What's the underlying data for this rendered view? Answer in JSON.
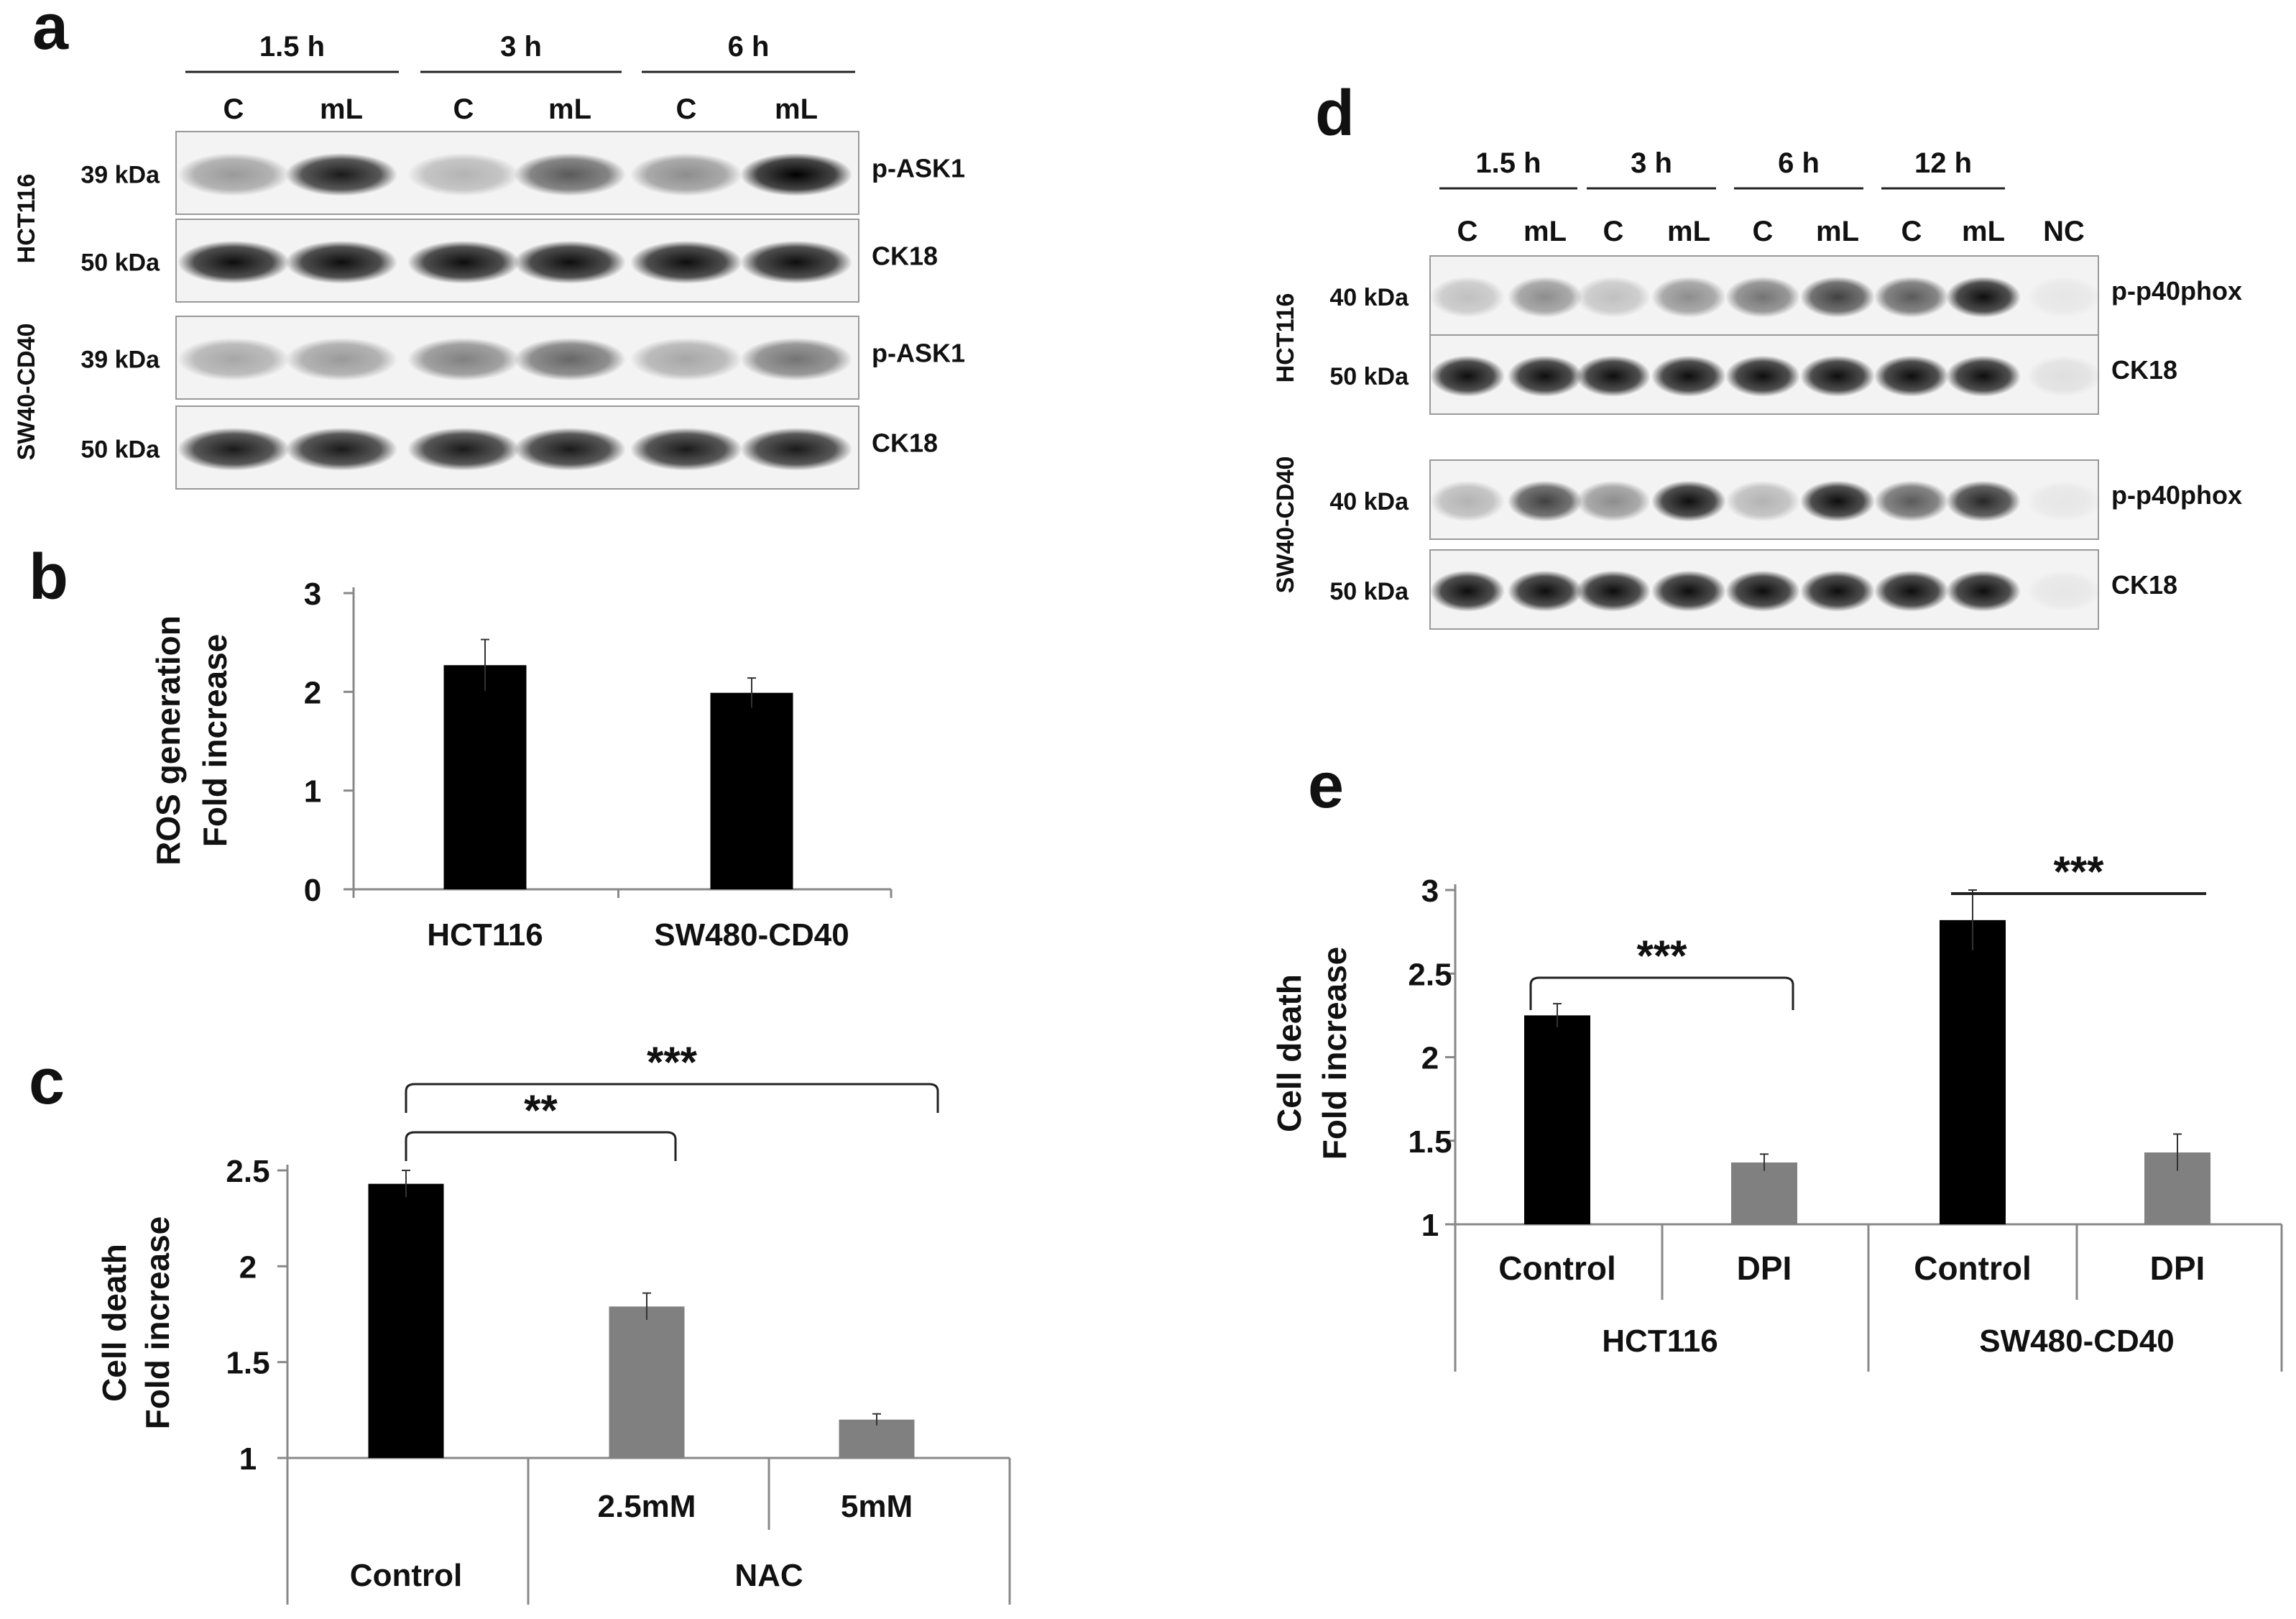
{
  "panels": {
    "a": {
      "letter": "a",
      "time_points": [
        "1.5 h",
        "3 h",
        "6 h"
      ],
      "lane_labels": [
        "C",
        "mL",
        "C",
        "mL",
        "C",
        "mL"
      ],
      "cell_lines": [
        "HCT116",
        "SW40-CD40"
      ],
      "blots": [
        {
          "kda": "39 kDa",
          "protein": "p-ASK1",
          "intensity": [
            0.35,
            0.85,
            0.25,
            0.6,
            0.4,
            0.95
          ]
        },
        {
          "kda": "50 kDa",
          "protein": "CK18",
          "intensity": [
            0.9,
            0.9,
            0.9,
            0.9,
            0.9,
            0.9
          ]
        },
        {
          "kda": "39 kDa",
          "protein": "p-ASK1",
          "intensity": [
            0.3,
            0.35,
            0.45,
            0.55,
            0.3,
            0.5
          ]
        },
        {
          "kda": "50 kDa",
          "protein": "CK18",
          "intensity": [
            0.85,
            0.85,
            0.85,
            0.85,
            0.85,
            0.85
          ]
        }
      ]
    },
    "d": {
      "letter": "d",
      "time_points": [
        "1.5 h",
        "3 h",
        "6 h",
        "12 h"
      ],
      "lane_labels": [
        "C",
        "mL",
        "C",
        "mL",
        "C",
        "mL",
        "C",
        "mL",
        "NC"
      ],
      "cell_lines": [
        "HCT116",
        "SW40-CD40"
      ],
      "blots": [
        {
          "kda": "40 kDa",
          "protein": "p-p40phox",
          "intensity": [
            0.2,
            0.4,
            0.2,
            0.4,
            0.5,
            0.7,
            0.6,
            0.9,
            0.05
          ]
        },
        {
          "kda": "50 kDa",
          "protein": "CK18",
          "intensity": [
            0.9,
            0.9,
            0.9,
            0.9,
            0.9,
            0.9,
            0.9,
            0.9,
            0.08
          ]
        },
        {
          "kda": "40 kDa",
          "protein": "p-p40phox",
          "intensity": [
            0.25,
            0.7,
            0.4,
            0.9,
            0.25,
            0.9,
            0.6,
            0.8,
            0.05
          ]
        },
        {
          "kda": "50 kDa",
          "protein": "CK18",
          "intensity": [
            0.9,
            0.9,
            0.9,
            0.9,
            0.9,
            0.9,
            0.9,
            0.9,
            0.05
          ]
        }
      ]
    }
  },
  "chart_data": [
    {
      "panel": "b",
      "type": "bar",
      "title": "",
      "xlabel": "",
      "ylabel": [
        "ROS generation",
        "Fold increase"
      ],
      "categories": [
        "HCT116",
        "SW480-CD40"
      ],
      "values": [
        2.27,
        1.99
      ],
      "errors": [
        0.26,
        0.15
      ],
      "bar_colors": [
        "#000000",
        "#000000"
      ],
      "ylim": [
        0,
        3
      ],
      "yticks": [
        "0",
        "1",
        "2",
        "3"
      ],
      "grid": false
    },
    {
      "panel": "c",
      "type": "bar",
      "title": "",
      "xlabel": "",
      "ylabel": [
        "Cell death",
        "Fold increase"
      ],
      "categories": [
        "Control",
        "2.5mM",
        "5mM"
      ],
      "group_labels": [
        "Control",
        "NAC"
      ],
      "values": [
        2.43,
        1.79,
        1.2
      ],
      "errors": [
        0.07,
        0.07,
        0.03
      ],
      "bar_colors": [
        "#000000",
        "#808080",
        "#808080"
      ],
      "ylim": [
        1,
        2.5
      ],
      "yticks": [
        "1",
        "1.5",
        "2",
        "2.5"
      ],
      "significance": [
        {
          "from": "Control",
          "to": "2.5mM",
          "label": "**"
        },
        {
          "from": "Control",
          "to": "5mM",
          "label": "***"
        }
      ],
      "grid": false
    },
    {
      "panel": "e",
      "type": "bar",
      "title": "",
      "xlabel": "",
      "ylabel": [
        "Cell death",
        "Fold increase"
      ],
      "categories": [
        "Control",
        "DPI",
        "Control",
        "DPI"
      ],
      "group_labels": [
        "HCT116",
        "SW480-CD40"
      ],
      "values": [
        2.25,
        1.37,
        2.82,
        1.43
      ],
      "errors": [
        0.07,
        0.05,
        0.18,
        0.11
      ],
      "bar_colors": [
        "#000000",
        "#808080",
        "#000000",
        "#808080"
      ],
      "ylim": [
        1,
        3
      ],
      "yticks": [
        "1",
        "1.5",
        "2",
        "2.5",
        "3"
      ],
      "significance": [
        {
          "from": "Control",
          "to": "DPI",
          "group": "HCT116",
          "label": "***"
        },
        {
          "group": "SW480-CD40",
          "label": "***"
        }
      ],
      "grid": false
    }
  ]
}
